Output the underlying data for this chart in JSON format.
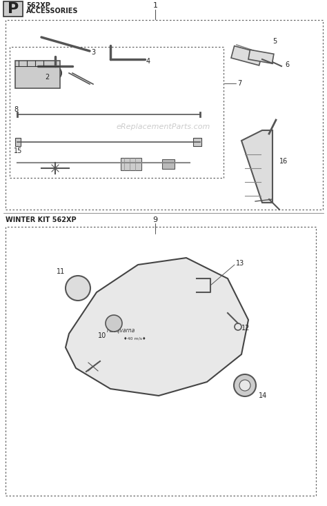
{
  "title_letter": "P",
  "title_model": "562XP",
  "title_subtitle": "ACCESSORIES",
  "section2_label": "WINTER KIT 562XP",
  "section1_ref": "1",
  "section2_ref": "9",
  "bg_color": "#ffffff",
  "border_color": "#333333",
  "text_color": "#222222",
  "watermark": "eReplacementParts.com",
  "part_numbers_section1": [
    2,
    3,
    4,
    5,
    6,
    7,
    8,
    15,
    16
  ],
  "part_numbers_section2": [
    9,
    10,
    11,
    12,
    13,
    14
  ]
}
